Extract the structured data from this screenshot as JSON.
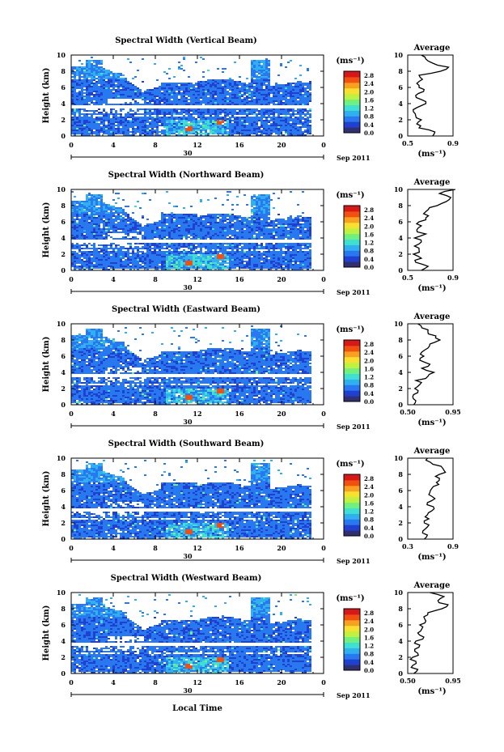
{
  "figure": {
    "xlabel": "Local Time",
    "unit_label": "(ms⁻¹)",
    "date_label": "30",
    "date_suffix": "Sep 2011",
    "ylabel": "Height (km)",
    "avg_title": "Average",
    "avg_unit": "(ms⁻¹)"
  },
  "colors": {
    "scale": [
      "#303070",
      "#2040d0",
      "#2878f0",
      "#30b0f0",
      "#40e0d0",
      "#70f080",
      "#c0f040",
      "#f8e030",
      "#f8a020",
      "#f05010",
      "#d81818"
    ]
  },
  "chart_data": [
    {
      "type": "heatmap",
      "title": "Spectral Width (Vertical Beam)",
      "x_ticks": [
        "0",
        "4",
        "8",
        "12",
        "16",
        "20",
        "0"
      ],
      "y_ticks": [
        "0",
        "2",
        "4",
        "6",
        "8",
        "10"
      ],
      "xlim": [
        0,
        24
      ],
      "ylim": [
        0,
        10
      ],
      "colorbar": {
        "ticks": [
          "0.0",
          "0.4",
          "0.8",
          "1.2",
          "1.6",
          "2.0",
          "2.4",
          "2.8"
        ],
        "range": [
          0,
          3.0
        ]
      },
      "profile": {
        "xlim": [
          0.5,
          0.9
        ],
        "x_ticks": [
          "0.5",
          "0.9"
        ],
        "y": [
          0,
          0.5,
          1,
          1.5,
          2,
          2.5,
          3,
          3.5,
          4,
          4.5,
          5,
          5.5,
          6,
          6.5,
          7,
          7.5,
          8,
          8.5,
          9,
          9.5,
          10
        ],
        "x": [
          0.72,
          0.74,
          0.6,
          0.58,
          0.62,
          0.57,
          0.55,
          0.58,
          0.66,
          0.62,
          0.57,
          0.64,
          0.6,
          0.58,
          0.63,
          0.6,
          0.79,
          0.86,
          0.72,
          0.66,
          0.62
        ]
      }
    },
    {
      "type": "heatmap",
      "title": "Spectral Width (Northward Beam)",
      "x_ticks": [
        "0",
        "4",
        "8",
        "12",
        "16",
        "20",
        "0"
      ],
      "y_ticks": [
        "0",
        "2",
        "4",
        "6",
        "8",
        "10"
      ],
      "xlim": [
        0,
        24
      ],
      "ylim": [
        0,
        10
      ],
      "colorbar": {
        "ticks": [
          "0.0",
          "0.4",
          "0.8",
          "1.2",
          "1.6",
          "2.0",
          "2.4",
          "2.8"
        ],
        "range": [
          0,
          3.0
        ]
      },
      "profile": {
        "xlim": [
          0.5,
          0.9
        ],
        "x_ticks": [
          "0.5",
          "0.9"
        ],
        "y": [
          0,
          0.5,
          1,
          1.5,
          2,
          2.5,
          3,
          3.5,
          4,
          4.5,
          5,
          5.5,
          6,
          6.5,
          7,
          7.5,
          8,
          8.5,
          9,
          9.5,
          10
        ],
        "x": [
          0.62,
          0.68,
          0.57,
          0.62,
          0.55,
          0.6,
          0.56,
          0.62,
          0.56,
          0.66,
          0.58,
          0.62,
          0.6,
          0.66,
          0.64,
          0.68,
          0.76,
          0.84,
          0.88,
          0.78,
          0.92
        ]
      }
    },
    {
      "type": "heatmap",
      "title": "Spectral Width (Eastward Beam)",
      "x_ticks": [
        "0",
        "4",
        "8",
        "12",
        "16",
        "20",
        "0"
      ],
      "y_ticks": [
        "0",
        "2",
        "4",
        "6",
        "8",
        "10"
      ],
      "xlim": [
        0,
        24
      ],
      "ylim": [
        0,
        10
      ],
      "colorbar": {
        "ticks": [
          "0.0",
          "0.4",
          "0.8",
          "1.2",
          "1.6",
          "2.0",
          "2.4",
          "2.8"
        ],
        "range": [
          0,
          3.0
        ]
      },
      "profile": {
        "xlim": [
          0.5,
          0.95
        ],
        "x_ticks": [
          "0.50",
          "0.95"
        ],
        "y": [
          0,
          0.5,
          1,
          1.5,
          2,
          2.5,
          3,
          3.5,
          4,
          4.5,
          5,
          5.5,
          6,
          6.5,
          7,
          7.5,
          8,
          8.5,
          9,
          9.5,
          10
        ],
        "x": [
          0.56,
          0.58,
          0.55,
          0.6,
          0.57,
          0.62,
          0.58,
          0.7,
          0.76,
          0.64,
          0.72,
          0.62,
          0.66,
          0.64,
          0.7,
          0.72,
          0.82,
          0.78,
          0.7,
          0.64,
          0.6
        ]
      }
    },
    {
      "type": "heatmap",
      "title": "Spectral Width (Southward Beam)",
      "x_ticks": [
        "0",
        "4",
        "8",
        "12",
        "16",
        "20",
        "0"
      ],
      "y_ticks": [
        "0",
        "2",
        "4",
        "6",
        "8",
        "10"
      ],
      "xlim": [
        0,
        24
      ],
      "ylim": [
        0,
        10
      ],
      "colorbar": {
        "ticks": [
          "0.0",
          "0.4",
          "0.8",
          "1.2",
          "1.6",
          "2.0",
          "2.4",
          "2.8"
        ],
        "range": [
          0,
          3.0
        ]
      },
      "profile": {
        "xlim": [
          0.3,
          0.9
        ],
        "x_ticks": [
          "0.3",
          "0.9"
        ],
        "y": [
          0,
          0.5,
          1,
          1.5,
          2,
          2.5,
          3,
          3.5,
          4,
          4.5,
          5,
          5.5,
          6,
          6.5,
          7,
          7.5,
          8,
          8.5,
          9,
          9.5,
          10
        ],
        "x": [
          0.52,
          0.56,
          0.5,
          0.56,
          0.52,
          0.58,
          0.56,
          0.62,
          0.64,
          0.56,
          0.66,
          0.58,
          0.6,
          0.64,
          0.68,
          0.72,
          0.72,
          0.78,
          0.74,
          0.6,
          0.56
        ]
      }
    },
    {
      "type": "heatmap",
      "title": "Spectral Width (Westward Beam)",
      "x_ticks": [
        "0",
        "4",
        "8",
        "12",
        "16",
        "20",
        "0"
      ],
      "y_ticks": [
        "0",
        "2",
        "4",
        "6",
        "8",
        "10"
      ],
      "xlim": [
        0,
        24
      ],
      "ylim": [
        0,
        10
      ],
      "colorbar": {
        "ticks": [
          "0.0",
          "0.4",
          "0.8",
          "1.2",
          "1.6",
          "2.0",
          "2.4",
          "2.8"
        ],
        "range": [
          0,
          3.0
        ]
      },
      "profile": {
        "xlim": [
          0.5,
          0.95
        ],
        "x_ticks": [
          "0.50",
          "0.95"
        ],
        "y": [
          0,
          0.5,
          1,
          1.5,
          2,
          2.5,
          3,
          3.5,
          4,
          4.5,
          5,
          5.5,
          6,
          6.5,
          7,
          7.5,
          8,
          8.5,
          9,
          9.5,
          10
        ],
        "x": [
          0.56,
          0.6,
          0.55,
          0.58,
          0.55,
          0.6,
          0.57,
          0.62,
          0.58,
          0.66,
          0.6,
          0.64,
          0.62,
          0.68,
          0.66,
          0.7,
          0.84,
          0.9,
          0.8,
          0.86,
          0.72
        ]
      }
    }
  ]
}
